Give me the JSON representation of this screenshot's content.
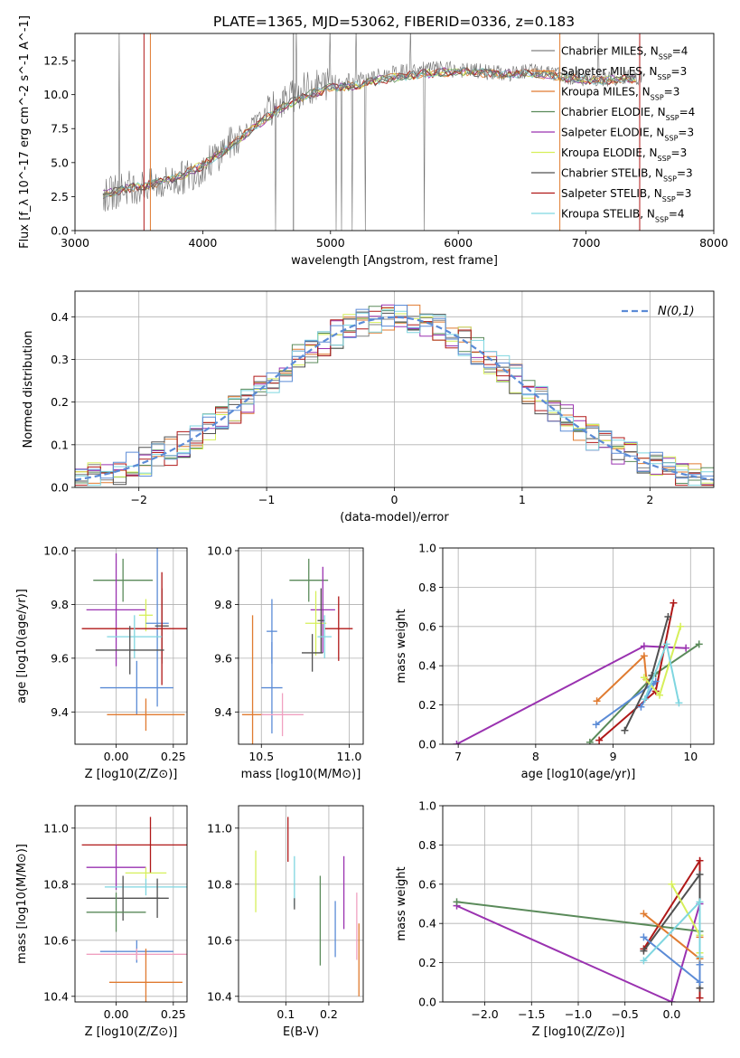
{
  "title": "PLATE=1365, MJD=53062, FIBERID=0336, z=0.183",
  "palette": [
    "#808080",
    "#e07b30",
    "#5a8a5a",
    "#9a32b0",
    "#d6ef5a",
    "#505050",
    "#b01818",
    "#7fd6e0",
    "#5b8bd6"
  ],
  "models": [
    {
      "name": "Chabrier MILES",
      "nssp": "4",
      "color": "#808080"
    },
    {
      "name": "Salpeter MILES",
      "nssp": "3",
      "color": "#e07b30"
    },
    {
      "name": "Kroupa MILES",
      "nssp": "3",
      "color": "#e07b30"
    },
    {
      "name": "Chabrier ELODIE",
      "nssp": "4",
      "color": "#5a8a5a"
    },
    {
      "name": "Salpeter ELODIE",
      "nssp": "3",
      "color": "#9a32b0"
    },
    {
      "name": "Kroupa ELODIE",
      "nssp": "3",
      "color": "#d6ef5a"
    },
    {
      "name": "Chabrier STELIB",
      "nssp": "3",
      "color": "#505050"
    },
    {
      "name": "Salpeter STELIB",
      "nssp": "3",
      "color": "#b01818"
    },
    {
      "name": "Kroupa STELIB",
      "nssp": "4",
      "color": "#7fd6e0"
    }
  ],
  "chart_data": [
    {
      "id": "spectrum",
      "type": "line",
      "xlabel": "wavelength [Angstrom, rest frame]",
      "ylabel": "Flux [f_λ 10^-17 erg cm^-2 s^-1 A^-1]",
      "xlim": [
        3000,
        8000
      ],
      "ylim": [
        0,
        14.5
      ],
      "xticks": [
        "3000",
        "4000",
        "5000",
        "6000",
        "7000",
        "8000"
      ],
      "yticks": [
        "0.0",
        "2.5",
        "5.0",
        "7.5",
        "10.0",
        "12.5"
      ],
      "data_x": [
        3200,
        3400,
        3600,
        3800,
        4000,
        4200,
        4400,
        4600,
        4800,
        5000,
        5200,
        5400,
        5600,
        5800,
        6000,
        6200,
        6400,
        6600,
        6800,
        7000,
        7200,
        7400,
        7600
      ],
      "data_y": [
        2.4,
        3.2,
        3.3,
        3.7,
        4.6,
        6.3,
        7.9,
        9.3,
        10.4,
        10.9,
        11.0,
        11.4,
        11.7,
        11.9,
        11.8,
        11.7,
        11.5,
        11.8,
        11.4,
        11.2,
        11.2,
        11.3,
        11.3
      ],
      "model_y": [
        2.6,
        3.1,
        3.4,
        3.9,
        4.8,
        6.1,
        7.6,
        9.0,
        9.9,
        10.5,
        10.7,
        11.1,
        11.4,
        11.6,
        11.7,
        11.6,
        11.5,
        11.6,
        11.3,
        11.1,
        11.1,
        11.2,
        11.2
      ],
      "grid": false,
      "legend": "top-right"
    },
    {
      "id": "residuals",
      "type": "histogram",
      "xlabel": "(data-model)/error",
      "ylabel": "Normed distribution",
      "xlim": [
        -2.5,
        2.5
      ],
      "ylim": [
        0,
        0.46
      ],
      "xticks": [
        "−2",
        "−1",
        "0",
        "1",
        "2"
      ],
      "yticks": [
        "0.0",
        "0.1",
        "0.2",
        "0.3",
        "0.4"
      ],
      "bin_width": 0.1,
      "gaussian_label": "N(0,1)",
      "gaussian_color": "#5b8bd6",
      "grid": true,
      "legend": "top-right"
    },
    {
      "id": "age-vs-Z",
      "type": "errorbar",
      "xlabel": "Z [log10(Z/Z⊙)]",
      "ylabel": "age [log10(age/yr)]",
      "xlim": [
        -0.18,
        0.31
      ],
      "ylim": [
        9.28,
        10.01
      ],
      "xticks": [
        "0.00",
        "0.25"
      ],
      "yticks": [
        "9.4",
        "9.6",
        "9.8",
        "10.0"
      ],
      "points": [
        {
          "x": 0.03,
          "y": 9.89,
          "xerr": 0.13,
          "yerr": 0.08,
          "color": "#5a8a5a"
        },
        {
          "x": 0.0,
          "y": 9.78,
          "xerr": 0.13,
          "yerr": 0.21,
          "color": "#9a32b0"
        },
        {
          "x": 0.13,
          "y": 9.76,
          "xerr": 0.03,
          "yerr": 0.06,
          "color": "#d6ef5a"
        },
        {
          "x": 0.18,
          "y": 9.73,
          "xerr": 0.05,
          "yerr": 0.31,
          "color": "#5b8bd6"
        },
        {
          "x": 0.2,
          "y": 9.72,
          "xerr": 0.03,
          "yerr": 0.14,
          "color": "#505050"
        },
        {
          "x": 0.2,
          "y": 9.71,
          "xerr": 0.35,
          "yerr": 0.21,
          "color": "#b01818"
        },
        {
          "x": 0.08,
          "y": 9.68,
          "xerr": 0.12,
          "yerr": 0.08,
          "color": "#7fd6e0"
        },
        {
          "x": 0.06,
          "y": 9.63,
          "xerr": 0.15,
          "yerr": 0.09,
          "color": "#505050"
        },
        {
          "x": 0.09,
          "y": 9.49,
          "xerr": 0.16,
          "yerr": 0.1,
          "color": "#5b8bd6"
        },
        {
          "x": 0.13,
          "y": 9.39,
          "xerr": 0.17,
          "yerr": 0.06,
          "color": "#e07b30"
        }
      ],
      "grid": true
    },
    {
      "id": "age-vs-mass",
      "type": "errorbar",
      "xlabel": "mass [log10(M/M⊙)]",
      "ylabel": "",
      "xlim": [
        10.37,
        11.08
      ],
      "ylim": [
        9.28,
        10.01
      ],
      "xticks": [
        "10.5",
        "11.0"
      ],
      "yticks": [
        "9.4",
        "9.6",
        "9.8",
        "10.0"
      ],
      "points": [
        {
          "x": 10.77,
          "y": 9.89,
          "xerr": 0.11,
          "yerr": 0.08,
          "color": "#5a8a5a"
        },
        {
          "x": 10.85,
          "y": 9.78,
          "xerr": 0.07,
          "yerr": 0.16,
          "color": "#9a32b0"
        },
        {
          "x": 10.81,
          "y": 9.73,
          "xerr": 0.06,
          "yerr": 0.12,
          "color": "#d6ef5a"
        },
        {
          "x": 10.56,
          "y": 9.7,
          "xerr": 0.03,
          "yerr": 0.12,
          "color": "#5b8bd6"
        },
        {
          "x": 10.84,
          "y": 9.74,
          "xerr": 0.02,
          "yerr": 0.12,
          "color": "#505050"
        },
        {
          "x": 10.94,
          "y": 9.71,
          "xerr": 0.08,
          "yerr": 0.12,
          "color": "#b01818"
        },
        {
          "x": 10.86,
          "y": 9.68,
          "xerr": 0.04,
          "yerr": 0.08,
          "color": "#7fd6e0"
        },
        {
          "x": 10.79,
          "y": 9.62,
          "xerr": 0.06,
          "yerr": 0.07,
          "color": "#505050"
        },
        {
          "x": 10.56,
          "y": 9.49,
          "xerr": 0.06,
          "yerr": 0.17,
          "color": "#5b8bd6"
        },
        {
          "x": 10.45,
          "y": 9.39,
          "xerr": 0.06,
          "yerr": 0.37,
          "color": "#e07b30"
        },
        {
          "x": 10.62,
          "y": 9.39,
          "xerr": 0.12,
          "yerr": 0.08,
          "color": "#f0a0c0"
        }
      ],
      "grid": true
    },
    {
      "id": "weight-vs-age",
      "type": "line",
      "xlabel": "age [log10(age/yr)]",
      "ylabel": "mass weight",
      "xlim": [
        6.8,
        10.3
      ],
      "ylim": [
        0,
        1
      ],
      "xticks": [
        "7",
        "8",
        "9",
        "10"
      ],
      "yticks": [
        "0.0",
        "0.2",
        "0.4",
        "0.6",
        "0.8",
        "1.0"
      ],
      "series": [
        {
          "color": "#9a32b0",
          "x": [
            6.98,
            9.4,
            9.94
          ],
          "y": [
            0.0,
            0.5,
            0.49
          ]
        },
        {
          "color": "#5a8a5a",
          "x": [
            8.7,
            9.55,
            10.11
          ],
          "y": [
            0.01,
            0.36,
            0.51
          ]
        },
        {
          "color": "#b01818",
          "x": [
            8.82,
            9.55,
            9.78
          ],
          "y": [
            0.02,
            0.27,
            0.72
          ]
        },
        {
          "color": "#e07b30",
          "x": [
            8.79,
            9.4,
            9.43
          ],
          "y": [
            0.22,
            0.45,
            0.33
          ]
        },
        {
          "color": "#5b8bd6",
          "x": [
            8.78,
            9.55,
            9.36
          ],
          "y": [
            0.1,
            0.32,
            0.19
          ]
        },
        {
          "color": "#505050",
          "x": [
            9.15,
            9.5,
            9.71
          ],
          "y": [
            0.07,
            0.35,
            0.65
          ]
        },
        {
          "color": "#d6ef5a",
          "x": [
            9.4,
            9.6,
            9.87
          ],
          "y": [
            0.34,
            0.25,
            0.6
          ]
        },
        {
          "color": "#7fd6e0",
          "x": [
            9.41,
            9.69,
            9.85
          ],
          "y": [
            0.23,
            0.51,
            0.21
          ]
        }
      ],
      "grid": true
    },
    {
      "id": "mass-vs-Z",
      "type": "errorbar",
      "xlabel": "Z [log10(Z/Z⊙)]",
      "ylabel": "mass [log10(M/M⊙)]",
      "xlim": [
        -0.18,
        0.31
      ],
      "ylim": [
        10.38,
        11.08
      ],
      "xticks": [
        "0.00",
        "0.25"
      ],
      "yticks": [
        "10.4",
        "10.6",
        "10.8",
        "11.0"
      ],
      "points": [
        {
          "x": 0.15,
          "y": 10.94,
          "xerr": 0.3,
          "yerr": 0.1,
          "color": "#b01818"
        },
        {
          "x": 0.0,
          "y": 10.86,
          "xerr": 0.13,
          "yerr": 0.08,
          "color": "#9a32b0"
        },
        {
          "x": 0.13,
          "y": 10.84,
          "xerr": 0.09,
          "yerr": 0.02,
          "color": "#d6ef5a"
        },
        {
          "x": 0.13,
          "y": 10.79,
          "xerr": 0.18,
          "yerr": 0.03,
          "color": "#7fd6e0"
        },
        {
          "x": 0.03,
          "y": 10.75,
          "xerr": 0.16,
          "yerr": 0.08,
          "color": "#505050"
        },
        {
          "x": 0.18,
          "y": 10.75,
          "xerr": 0.05,
          "yerr": 0.07,
          "color": "#505050"
        },
        {
          "x": 0.0,
          "y": 10.7,
          "xerr": 0.13,
          "yerr": 0.07,
          "color": "#5a8a5a"
        },
        {
          "x": 0.09,
          "y": 10.56,
          "xerr": 0.16,
          "yerr": 0.04,
          "color": "#5b8bd6"
        },
        {
          "x": 0.09,
          "y": 10.55,
          "xerr": 0.22,
          "yerr": 0.02,
          "color": "#f0a0c0"
        },
        {
          "x": 0.13,
          "y": 10.45,
          "xerr": 0.16,
          "yerr": 0.12,
          "color": "#e07b30"
        }
      ],
      "grid": true
    },
    {
      "id": "mass-vs-ebv",
      "type": "errorbar",
      "xlabel": "E(B-V)",
      "ylabel": "",
      "xlim": [
        -0.01,
        0.28
      ],
      "ylim": [
        10.38,
        11.08
      ],
      "xticks": [
        "0.1",
        "0.2"
      ],
      "yticks": [
        "10.4",
        "10.6",
        "10.8",
        "11.0"
      ],
      "points": [
        {
          "x": 0.03,
          "y": 10.81,
          "xerr": 0,
          "yerr": 0.11,
          "color": "#d6ef5a"
        },
        {
          "x": 0.105,
          "y": 10.96,
          "xerr": 0,
          "yerr": 0.08,
          "color": "#b01818"
        },
        {
          "x": 0.12,
          "y": 10.81,
          "xerr": 0,
          "yerr": 0.09,
          "color": "#7fd6e0"
        },
        {
          "x": 0.12,
          "y": 10.73,
          "xerr": 0,
          "yerr": 0.02,
          "color": "#505050"
        },
        {
          "x": 0.18,
          "y": 10.67,
          "xerr": 0,
          "yerr": 0.16,
          "color": "#5a8a5a"
        },
        {
          "x": 0.215,
          "y": 10.64,
          "xerr": 0,
          "yerr": 0.1,
          "color": "#5b8bd6"
        },
        {
          "x": 0.235,
          "y": 10.77,
          "xerr": 0,
          "yerr": 0.13,
          "color": "#9a32b0"
        },
        {
          "x": 0.265,
          "y": 10.65,
          "xerr": 0,
          "yerr": 0.12,
          "color": "#f0a0c0"
        },
        {
          "x": 0.27,
          "y": 10.53,
          "xerr": 0,
          "yerr": 0.13,
          "color": "#e07b30"
        }
      ],
      "grid": true
    },
    {
      "id": "weight-vs-Z",
      "type": "line",
      "xlabel": "Z [log10(Z/Z⊙)]",
      "ylabel": "mass weight",
      "xlim": [
        -2.45,
        0.45
      ],
      "ylim": [
        0,
        1
      ],
      "xticks": [
        "−2.0",
        "−1.5",
        "−1.0",
        "−0.5",
        "0.0"
      ],
      "yticks": [
        "0.0",
        "0.2",
        "0.4",
        "0.6",
        "0.8",
        "1.0"
      ],
      "series": [
        {
          "color": "#9a32b0",
          "x": [
            -2.3,
            0.0,
            0.3
          ],
          "y": [
            0.49,
            0.0,
            0.5
          ]
        },
        {
          "color": "#5a8a5a",
          "x": [
            -2.3,
            0.3
          ],
          "y": [
            0.51,
            0.36
          ]
        },
        {
          "color": "#b01818",
          "x": [
            -0.3,
            0.3,
            0.3
          ],
          "y": [
            0.27,
            0.72,
            0.02
          ]
        },
        {
          "color": "#505050",
          "x": [
            -0.3,
            0.3,
            0.3
          ],
          "y": [
            0.26,
            0.65,
            0.07
          ]
        },
        {
          "color": "#e07b30",
          "x": [
            -0.3,
            0.3,
            0.3
          ],
          "y": [
            0.45,
            0.22,
            0.33
          ]
        },
        {
          "color": "#5b8bd6",
          "x": [
            -0.3,
            0.3,
            0.3
          ],
          "y": [
            0.33,
            0.1,
            0.19
          ]
        },
        {
          "color": "#d6ef5a",
          "x": [
            0.0,
            0.3,
            0.3
          ],
          "y": [
            0.6,
            0.34,
            0.25
          ]
        },
        {
          "color": "#7fd6e0",
          "x": [
            -0.3,
            0.3,
            0.3
          ],
          "y": [
            0.21,
            0.51,
            0.23
          ]
        }
      ],
      "grid": true
    }
  ]
}
